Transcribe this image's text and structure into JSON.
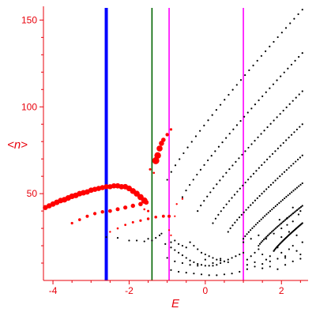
{
  "chart_data": {
    "type": "scatter",
    "xlabel": "E",
    "ylabel": "<n>",
    "xlim": [
      -4.25,
      2.7
    ],
    "ylim": [
      0,
      157
    ],
    "x_ticks": [
      -4,
      -2,
      0,
      2
    ],
    "x_tick_labels": [
      "-4",
      "-2",
      "0",
      "2"
    ],
    "y_ticks": [
      50,
      100,
      150
    ],
    "y_tick_labels": [
      "50",
      "100",
      "150"
    ],
    "grid": false,
    "axis_color": "#e8000b",
    "vertical_lines": [
      {
        "x": -2.6,
        "color": "#0000ff",
        "width": "thick"
      },
      {
        "x": -1.4,
        "color": "#006400",
        "width": "thin"
      },
      {
        "x": -0.95,
        "color": "#ff00ff",
        "width": "thin"
      },
      {
        "x": 1.0,
        "color": "#ff00ff",
        "width": "thin"
      }
    ],
    "series": [
      {
        "marker_color": "#ff0000",
        "marker": "large-dots",
        "points": [
          [
            -4.2,
            42
          ],
          [
            -4.1,
            43
          ],
          [
            -4.0,
            44
          ],
          [
            -3.9,
            45
          ],
          [
            -3.8,
            46
          ],
          [
            -3.7,
            46.5
          ],
          [
            -3.6,
            47.5
          ],
          [
            -3.5,
            48.5
          ],
          [
            -3.4,
            49
          ],
          [
            -3.3,
            50
          ],
          [
            -3.2,
            50.5
          ],
          [
            -3.1,
            51
          ],
          [
            -3.0,
            52
          ],
          [
            -2.9,
            52.5
          ],
          [
            -2.8,
            53
          ],
          [
            -2.7,
            53.5
          ],
          [
            -2.6,
            54
          ],
          [
            -2.5,
            54
          ],
          [
            -2.4,
            54.5
          ],
          [
            -2.3,
            54.5
          ],
          [
            -2.2,
            54
          ],
          [
            -2.1,
            54
          ],
          [
            -2.0,
            53
          ],
          [
            -1.9,
            51.5
          ],
          [
            -1.8,
            50
          ],
          [
            -1.7,
            48
          ],
          [
            -1.6,
            46
          ],
          [
            -3.5,
            33
          ],
          [
            -3.3,
            35
          ],
          [
            -3.1,
            37
          ],
          [
            -2.9,
            38.5
          ],
          [
            -2.7,
            39.5
          ],
          [
            -2.5,
            40
          ],
          [
            -2.3,
            41
          ],
          [
            -2.1,
            42
          ],
          [
            -1.9,
            43
          ],
          [
            -1.7,
            44
          ],
          [
            -1.55,
            45
          ],
          [
            -2.5,
            28
          ],
          [
            -2.3,
            30
          ],
          [
            -2.1,
            32
          ],
          [
            -1.9,
            33.5
          ],
          [
            -1.7,
            34.5
          ],
          [
            -1.5,
            35.5
          ],
          [
            -1.3,
            36.5
          ],
          [
            -1.1,
            37
          ],
          [
            -0.95,
            37
          ],
          [
            -1.3,
            69
          ],
          [
            -1.25,
            72
          ],
          [
            -1.2,
            76
          ],
          [
            -1.15,
            79
          ],
          [
            -1.1,
            81
          ],
          [
            -1.0,
            84
          ],
          [
            -0.9,
            87
          ],
          [
            -1.5,
            40
          ],
          [
            -1.6,
            41
          ],
          [
            -1.45,
            64
          ],
          [
            -1.35,
            62
          ],
          [
            -0.75,
            44
          ],
          [
            -0.6,
            47
          ],
          [
            -0.8,
            37
          ],
          [
            -0.9,
            26
          ],
          [
            -0.95,
            29
          ]
        ],
        "radius": [
          3.2,
          3.3,
          3.4,
          3.5,
          3.5,
          3.6,
          3.6,
          3.6,
          3.6,
          3.5,
          3.5,
          3.4,
          3.4,
          3.3,
          3.3,
          3.2,
          3.2,
          3.2,
          3.3,
          3.4,
          3.4,
          3.5,
          3.6,
          3.7,
          3.8,
          3.9,
          4.0,
          1.6,
          1.8,
          2.0,
          2.1,
          2.2,
          2.4,
          2.5,
          2.6,
          2.7,
          2.8,
          3.0,
          1.2,
          1.3,
          1.4,
          1.5,
          1.6,
          1.7,
          1.8,
          1.9,
          2.0,
          4.5,
          4.2,
          3.8,
          3.3,
          2.8,
          2.2,
          1.6,
          1.5,
          1.3,
          1.5,
          1.3,
          1.2,
          1.2,
          1.1,
          1.1,
          1.1
        ]
      },
      {
        "marker_color": "#000000",
        "marker": "small-dots",
        "families": [
          {
            "x_start": -1.0,
            "x_end": 2.55,
            "y_start": 58,
            "y_end": 156
          },
          {
            "x_start": -0.6,
            "x_end": 2.55,
            "y_start": 48,
            "y_end": 131
          },
          {
            "x_start": -0.2,
            "x_end": 2.55,
            "y_start": 40,
            "y_end": 109
          },
          {
            "x_start": 0.2,
            "x_end": 2.55,
            "y_start": 33,
            "y_end": 90
          },
          {
            "x_start": 0.6,
            "x_end": 2.55,
            "y_start": 28,
            "y_end": 72
          },
          {
            "x_start": 1.0,
            "x_end": 2.55,
            "y_start": 24,
            "y_end": 56
          },
          {
            "x_start": 1.4,
            "x_end": 2.55,
            "y_start": 20,
            "y_end": 43
          },
          {
            "x_start": 1.8,
            "x_end": 2.55,
            "y_start": 17,
            "y_end": 33
          }
        ],
        "points": [
          [
            -2.6,
            25
          ],
          [
            -2.3,
            24.5
          ],
          [
            -2.0,
            23
          ],
          [
            -1.8,
            23
          ],
          [
            -1.6,
            22.5
          ],
          [
            -1.5,
            24
          ],
          [
            -1.4,
            23
          ],
          [
            -1.3,
            24.5
          ],
          [
            -1.2,
            26
          ],
          [
            -1.15,
            27
          ],
          [
            -1.05,
            21
          ],
          [
            -0.9,
            19
          ],
          [
            -0.8,
            17.5
          ],
          [
            -0.7,
            16
          ],
          [
            -0.6,
            14.5
          ],
          [
            -0.5,
            13
          ],
          [
            -0.4,
            11.5
          ],
          [
            -0.3,
            10.5
          ],
          [
            -0.2,
            9.5
          ],
          [
            -0.1,
            9
          ],
          [
            0.0,
            8.5
          ],
          [
            0.1,
            8.5
          ],
          [
            0.2,
            8.5
          ],
          [
            0.3,
            9
          ],
          [
            0.4,
            10
          ],
          [
            0.5,
            11
          ],
          [
            0.6,
            12
          ],
          [
            0.7,
            13
          ],
          [
            0.8,
            14
          ],
          [
            0.9,
            15
          ],
          [
            1.0,
            16
          ],
          [
            -0.9,
            22
          ],
          [
            -0.8,
            23
          ],
          [
            -0.7,
            21
          ],
          [
            -0.6,
            20
          ],
          [
            -0.5,
            19
          ],
          [
            -0.4,
            22
          ],
          [
            -0.3,
            20
          ],
          [
            -0.2,
            18
          ],
          [
            -0.1,
            16
          ],
          [
            0.0,
            15
          ],
          [
            0.1,
            14
          ],
          [
            0.2,
            13
          ],
          [
            0.3,
            12
          ],
          [
            0.4,
            11.5
          ],
          [
            0.5,
            11
          ],
          [
            0.6,
            10.5
          ],
          [
            -1.0,
            13
          ],
          [
            -0.8,
            11
          ],
          [
            -0.6,
            10
          ],
          [
            -0.4,
            9
          ],
          [
            -0.2,
            8.5
          ],
          [
            0.0,
            12
          ],
          [
            0.2,
            10
          ],
          [
            0.4,
            12.5
          ],
          [
            -0.9,
            6
          ],
          [
            -0.7,
            5
          ],
          [
            -0.5,
            4.5
          ],
          [
            -0.3,
            4
          ],
          [
            -0.1,
            3.5
          ],
          [
            0.1,
            3
          ],
          [
            0.3,
            3
          ],
          [
            0.5,
            3.5
          ],
          [
            0.7,
            4
          ],
          [
            0.9,
            5
          ],
          [
            1.1,
            6.5
          ],
          [
            1.3,
            8
          ],
          [
            1.5,
            9.5
          ],
          [
            1.7,
            11
          ],
          [
            1.9,
            12.5
          ],
          [
            2.1,
            14
          ],
          [
            1.1,
            12
          ],
          [
            1.2,
            14
          ],
          [
            1.3,
            16
          ],
          [
            1.4,
            18
          ],
          [
            1.5,
            15
          ],
          [
            1.6,
            12
          ],
          [
            1.7,
            14
          ],
          [
            1.8,
            17
          ],
          [
            1.9,
            19
          ],
          [
            2.0,
            16
          ],
          [
            2.1,
            13
          ],
          [
            2.2,
            18
          ],
          [
            2.3,
            20
          ],
          [
            2.4,
            17
          ],
          [
            2.5,
            15
          ],
          [
            2.55,
            22
          ],
          [
            1.0,
            22
          ],
          [
            1.2,
            24
          ],
          [
            1.4,
            26
          ],
          [
            1.6,
            24
          ],
          [
            1.8,
            27
          ],
          [
            2.0,
            25
          ],
          [
            2.2,
            28
          ],
          [
            2.4,
            26
          ],
          [
            1.1,
            9
          ],
          [
            1.3,
            10.5
          ],
          [
            1.5,
            7
          ],
          [
            1.7,
            8
          ],
          [
            1.9,
            6.5
          ],
          [
            2.1,
            9
          ],
          [
            2.3,
            11
          ],
          [
            2.5,
            12.5
          ],
          [
            2.0,
            30
          ],
          [
            2.15,
            32
          ],
          [
            2.3,
            34
          ],
          [
            2.45,
            38
          ],
          [
            2.5,
            40
          ],
          [
            2.3,
            42
          ],
          [
            2.15,
            36
          ],
          [
            1.95,
            35
          ]
        ]
      }
    ]
  }
}
